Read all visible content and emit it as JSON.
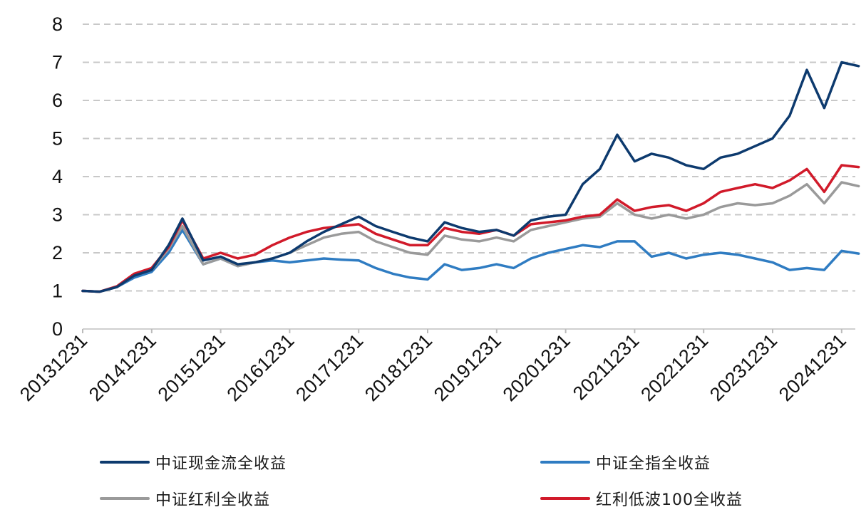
{
  "chart_data": {
    "type": "line",
    "title": "",
    "xlabel": "",
    "ylabel": "",
    "ylim": [
      0,
      8
    ],
    "y_ticks": [
      "0",
      "1",
      "2",
      "3",
      "4",
      "5",
      "6",
      "7",
      "8"
    ],
    "x_ticks": [
      "20131231",
      "20141231",
      "20151231",
      "20161231",
      "20171231",
      "20181231",
      "20191231",
      "20201231",
      "20211231",
      "20221231",
      "20231231",
      "20241231"
    ],
    "grid": "horizontal dashed",
    "legend_position": "bottom",
    "x": [
      "20131231",
      "20140331",
      "20140630",
      "20140930",
      "20141231",
      "20150331",
      "20150612",
      "20150930",
      "20151231",
      "20160331",
      "20160630",
      "20160930",
      "20161231",
      "20170331",
      "20170630",
      "20170930",
      "20171231",
      "20180331",
      "20180630",
      "20180930",
      "20181231",
      "20190331",
      "20190630",
      "20190930",
      "20191231",
      "20200331",
      "20200630",
      "20200930",
      "20201231",
      "20210331",
      "20210630",
      "20210930",
      "20211231",
      "20220331",
      "20220630",
      "20220930",
      "20221231",
      "20230331",
      "20230630",
      "20230930",
      "20231231",
      "20240331",
      "20240630",
      "20240930",
      "20241231",
      "20250331"
    ],
    "series": [
      {
        "name": "中证现金流全收益",
        "color": "#0d3a6e",
        "values": [
          1.0,
          0.98,
          1.1,
          1.4,
          1.55,
          2.2,
          2.9,
          1.8,
          1.9,
          1.7,
          1.75,
          1.85,
          2.0,
          2.3,
          2.55,
          2.75,
          2.95,
          2.7,
          2.55,
          2.4,
          2.3,
          2.8,
          2.65,
          2.55,
          2.6,
          2.45,
          2.85,
          2.95,
          3.0,
          3.8,
          4.2,
          5.1,
          4.4,
          4.6,
          4.5,
          4.3,
          4.2,
          4.5,
          4.6,
          4.8,
          5.0,
          5.6,
          6.8,
          5.8,
          7.0,
          6.9
        ]
      },
      {
        "name": "中证全指全收益",
        "color": "#2f7cc2",
        "values": [
          1.0,
          0.98,
          1.1,
          1.35,
          1.5,
          2.0,
          2.6,
          1.7,
          1.85,
          1.65,
          1.75,
          1.8,
          1.75,
          1.8,
          1.85,
          1.82,
          1.8,
          1.6,
          1.45,
          1.35,
          1.3,
          1.7,
          1.55,
          1.6,
          1.7,
          1.6,
          1.85,
          2.0,
          2.1,
          2.2,
          2.15,
          2.3,
          2.3,
          1.9,
          2.0,
          1.85,
          1.95,
          2.0,
          1.95,
          1.85,
          1.75,
          1.55,
          1.6,
          1.55,
          2.05,
          1.98
        ]
      },
      {
        "name": "中证红利全收益",
        "color": "#9a9a9a",
        "values": [
          1.0,
          0.98,
          1.1,
          1.4,
          1.55,
          2.1,
          2.7,
          1.7,
          1.85,
          1.65,
          1.75,
          1.85,
          2.0,
          2.2,
          2.4,
          2.5,
          2.55,
          2.3,
          2.15,
          2.0,
          1.95,
          2.45,
          2.35,
          2.3,
          2.4,
          2.3,
          2.6,
          2.7,
          2.8,
          2.9,
          2.95,
          3.3,
          3.0,
          2.9,
          3.0,
          2.9,
          3.0,
          3.2,
          3.3,
          3.25,
          3.3,
          3.5,
          3.8,
          3.3,
          3.85,
          3.75
        ]
      },
      {
        "name": "红利低波100全收益",
        "color": "#d11a2a",
        "values": [
          1.0,
          0.98,
          1.12,
          1.45,
          1.6,
          2.15,
          2.85,
          1.85,
          2.0,
          1.85,
          1.95,
          2.2,
          2.4,
          2.55,
          2.65,
          2.7,
          2.75,
          2.5,
          2.35,
          2.2,
          2.2,
          2.65,
          2.55,
          2.5,
          2.6,
          2.45,
          2.75,
          2.8,
          2.85,
          2.95,
          3.0,
          3.4,
          3.1,
          3.2,
          3.25,
          3.1,
          3.3,
          3.6,
          3.7,
          3.8,
          3.7,
          3.9,
          4.2,
          3.6,
          4.3,
          4.25
        ]
      }
    ]
  }
}
